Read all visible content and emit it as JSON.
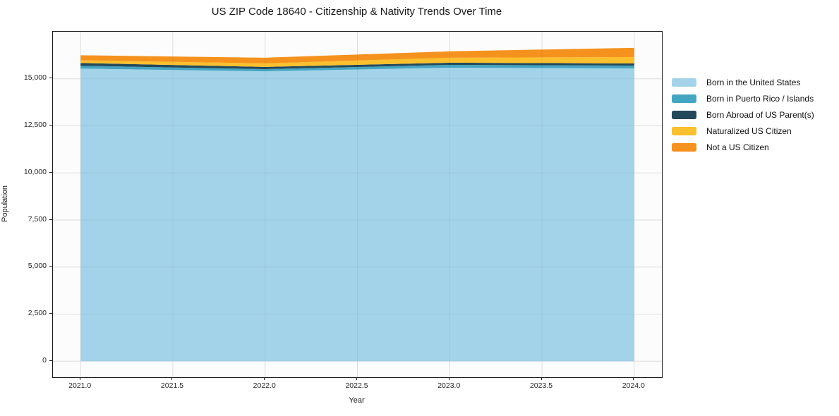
{
  "chart_data": {
    "type": "area",
    "stacked": true,
    "title": "US ZIP Code 18640 - Citizenship & Nativity Trends Over Time",
    "xlabel": "Year",
    "ylabel": "Population",
    "x": [
      2021,
      2022,
      2023,
      2024
    ],
    "series": [
      {
        "name": "Born in the United States",
        "color": "#A3D3E8",
        "values": [
          15540,
          15400,
          15590,
          15550
        ]
      },
      {
        "name": "Born in Puerto Rico / Islands",
        "color": "#44A5C2",
        "values": [
          150,
          115,
          150,
          150
        ]
      },
      {
        "name": "Born Abroad of US Parent(s)",
        "color": "#23495B",
        "values": [
          150,
          115,
          115,
          115
        ]
      },
      {
        "name": "Naturalized US Citizen",
        "color": "#FBC02D",
        "values": [
          140,
          190,
          265,
          340
        ]
      },
      {
        "name": "Not a US Citizen",
        "color": "#F5921E",
        "values": [
          270,
          300,
          340,
          490
        ]
      }
    ],
    "xticks": [
      2021.0,
      2021.5,
      2022.0,
      2022.5,
      2023.0,
      2023.5,
      2024.0
    ],
    "xtick_labels": [
      "2021.0",
      "2021.5",
      "2022.0",
      "2022.5",
      "2023.0",
      "2023.5",
      "2024.0"
    ],
    "yticks": [
      0,
      2500,
      5000,
      7500,
      10000,
      12500,
      15000
    ],
    "ytick_labels": [
      "0",
      "2,500",
      "5,000",
      "7,500",
      "10,000",
      "12,500",
      "15,000"
    ],
    "xlim": [
      2020.85,
      2024.15
    ],
    "ylim": [
      -850,
      17500
    ],
    "grid": true,
    "legend_position": "right",
    "colors": {
      "plot_background": "#fcfcfc",
      "gridline": "#e9e9e9",
      "axis_frame": "#1a1a1a"
    }
  }
}
